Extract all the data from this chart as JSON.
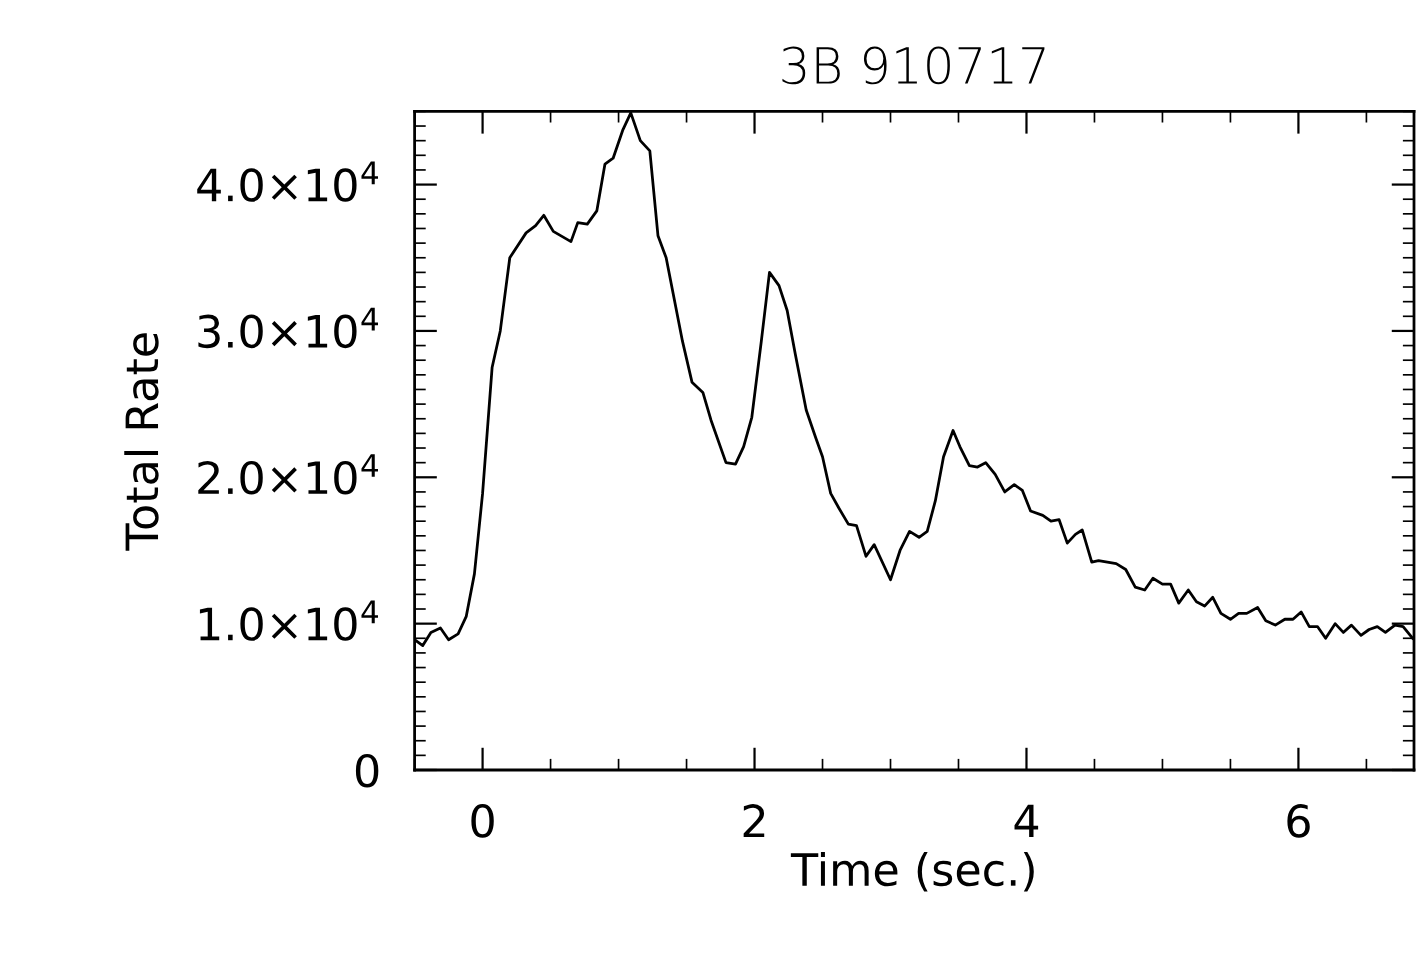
{
  "chart_data": {
    "type": "line",
    "title": "3B 910717",
    "xlabel": "Time (sec.)",
    "ylabel": "Total Rate",
    "xlim": [
      -0.5,
      6.85
    ],
    "xticks": [
      0,
      2,
      4,
      6
    ],
    "ylim": [
      0,
      45000
    ],
    "yticks": [
      {
        "value": 0,
        "label": "0"
      },
      {
        "value": 10000,
        "label": "1.0×10$^{4}$"
      },
      {
        "value": 20000,
        "label": "2.0×10$^{4}$"
      },
      {
        "value": 30000,
        "label": "3.0×10$^{4}$"
      },
      {
        "value": 40000,
        "label": "4.0×10$^{4}$"
      }
    ],
    "grid": false,
    "legend": false,
    "marker": "none",
    "line_style": "solid",
    "series": [
      {
        "color": "#000000",
        "x": [
          -0.5,
          -0.44,
          -0.38,
          -0.31,
          -0.25,
          -0.18,
          -0.12,
          -0.06,
          0.0,
          0.07,
          0.13,
          0.2,
          0.32,
          0.39,
          0.45,
          0.52,
          0.65,
          0.7,
          0.77,
          0.84,
          0.9,
          0.96,
          1.03,
          1.09,
          1.16,
          1.23,
          1.29,
          1.35,
          1.47,
          1.54,
          1.62,
          1.68,
          1.79,
          1.86,
          1.92,
          1.98,
          2.05,
          2.11,
          2.18,
          2.24,
          2.3,
          2.38,
          2.45,
          2.5,
          2.56,
          2.62,
          2.69,
          2.75,
          2.82,
          2.88,
          3.0,
          3.07,
          3.14,
          3.21,
          3.27,
          3.33,
          3.39,
          3.46,
          3.51,
          3.58,
          3.64,
          3.7,
          3.77,
          3.84,
          3.91,
          3.97,
          4.03,
          4.12,
          4.18,
          4.24,
          4.3,
          4.36,
          4.41,
          4.48,
          4.53,
          4.66,
          4.73,
          4.8,
          4.87,
          4.93,
          5.0,
          5.06,
          5.12,
          5.19,
          5.25,
          5.31,
          5.37,
          5.43,
          5.5,
          5.56,
          5.62,
          5.7,
          5.76,
          5.83,
          5.9,
          5.96,
          6.02,
          6.08,
          6.14,
          6.2,
          6.27,
          6.33,
          6.39,
          6.46,
          6.52,
          6.58,
          6.64,
          6.71,
          6.77,
          6.84
        ],
        "values": [
          8900,
          8500,
          9400,
          9700,
          8900,
          9300,
          10500,
          13400,
          18900,
          27500,
          30000,
          35000,
          36700,
          37200,
          37900,
          36800,
          36100,
          37400,
          37300,
          38200,
          41400,
          41800,
          43700,
          44900,
          43000,
          42300,
          36500,
          35000,
          29300,
          26500,
          25800,
          23900,
          21000,
          20900,
          22100,
          24100,
          29300,
          34000,
          33100,
          31400,
          28400,
          24600,
          22700,
          21400,
          18900,
          17900,
          16800,
          16700,
          14600,
          15400,
          13000,
          15000,
          16300,
          15900,
          16300,
          18400,
          21400,
          23200,
          22100,
          20800,
          20700,
          21000,
          20200,
          19000,
          19500,
          19100,
          17700,
          17400,
          17000,
          17100,
          15500,
          16100,
          16400,
          14200,
          14300,
          14100,
          13700,
          12500,
          12300,
          13100,
          12700,
          12700,
          11400,
          12300,
          11500,
          11200,
          11800,
          10700,
          10300,
          10700,
          10700,
          11100,
          10200,
          9900,
          10300,
          10300,
          10800,
          9800,
          9800,
          9000,
          10000,
          9400,
          9900,
          9200,
          9600,
          9800,
          9400,
          9900,
          9800,
          9000
        ]
      }
    ]
  }
}
